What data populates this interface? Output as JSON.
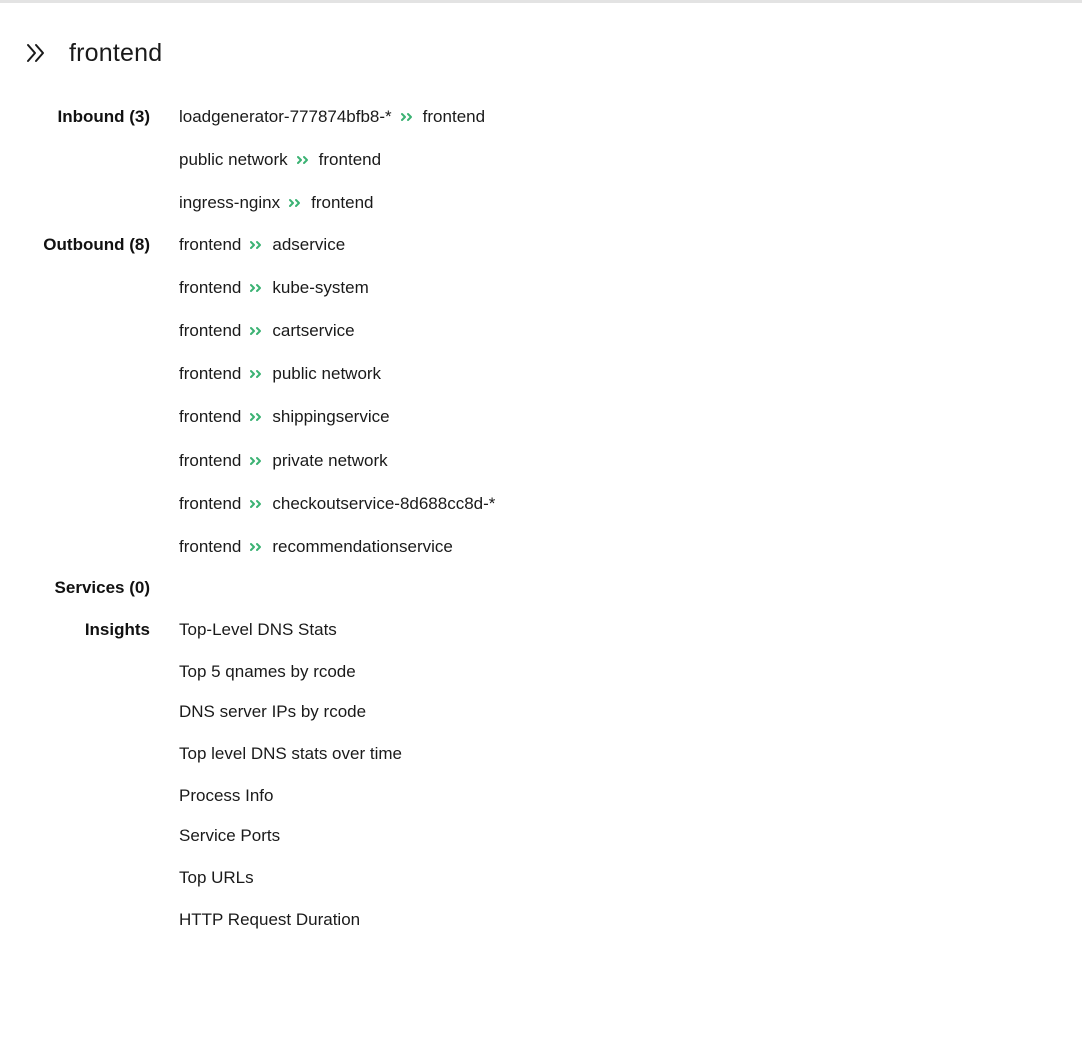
{
  "header": {
    "title": "frontend",
    "icon": "double-chevron-right-icon"
  },
  "colors": {
    "arrow": "#3bb273",
    "text": "#1a1a1a"
  },
  "inbound": {
    "label": "Inbound (3)",
    "items": [
      {
        "source": "loadgenerator-777874bfb8-*",
        "target": "frontend"
      },
      {
        "source": "public network",
        "target": "frontend"
      },
      {
        "source": "ingress-nginx",
        "target": "frontend"
      }
    ]
  },
  "outbound": {
    "label": "Outbound (8)",
    "items": [
      {
        "source": "frontend",
        "target": "adservice"
      },
      {
        "source": "frontend",
        "target": "kube-system"
      },
      {
        "source": "frontend",
        "target": "cartservice"
      },
      {
        "source": "frontend",
        "target": "public network"
      },
      {
        "source": "frontend",
        "target": "shippingservice"
      },
      {
        "source": "frontend",
        "target": "private network"
      },
      {
        "source": "frontend",
        "target": "checkoutservice-8d688cc8d-*"
      },
      {
        "source": "frontend",
        "target": "recommendationservice"
      }
    ]
  },
  "services": {
    "label": "Services (0)"
  },
  "insights": {
    "label": "Insights",
    "items": [
      "Top-Level DNS Stats",
      "Top 5 qnames by rcode",
      "DNS server IPs by rcode",
      "Top level DNS stats over time",
      "Process Info",
      "Service Ports",
      "Top URLs",
      "HTTP Request Duration"
    ]
  }
}
